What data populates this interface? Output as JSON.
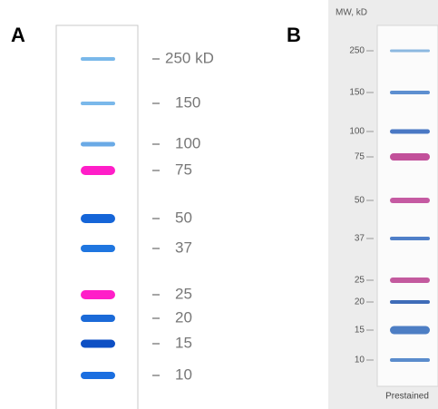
{
  "panel_a": {
    "label": "A",
    "bands": [
      {
        "text": "250 kD",
        "color": "#7ab8ea"
      },
      {
        "text": "150",
        "color": "#7ab8ea"
      },
      {
        "text": "100",
        "color": "#6aaae6"
      },
      {
        "text": "75",
        "color": "#ff1ec8"
      },
      {
        "text": "50",
        "color": "#1565d8"
      },
      {
        "text": "37",
        "color": "#1f76e0"
      },
      {
        "text": "25",
        "color": "#ff1ec8"
      },
      {
        "text": "20",
        "color": "#1b6ad8"
      },
      {
        "text": "15",
        "color": "#0d4fc4"
      },
      {
        "text": "10",
        "color": "#1a6ee0"
      }
    ]
  },
  "panel_b": {
    "label": "B",
    "axis_title": "MW, kD",
    "lane_label": "Prestained",
    "bands": [
      {
        "text": "250",
        "color": "#8cb8e0"
      },
      {
        "text": "150",
        "color": "#5d8fd0"
      },
      {
        "text": "100",
        "color": "#4a78c4"
      },
      {
        "text": "75",
        "color": "#c2509a"
      },
      {
        "text": "50",
        "color": "#c55aa2"
      },
      {
        "text": "37",
        "color": "#4f7fc8"
      },
      {
        "text": "25",
        "color": "#c35a9e"
      },
      {
        "text": "20",
        "color": "#3f6cb8"
      },
      {
        "text": "15",
        "color": "#4d7ec4"
      },
      {
        "text": "10",
        "color": "#5a8ccc"
      }
    ]
  }
}
